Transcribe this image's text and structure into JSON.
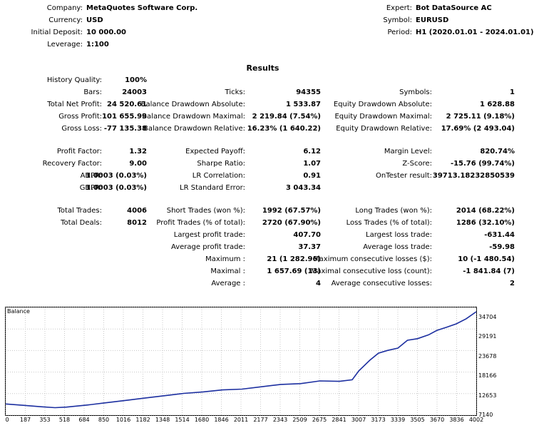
{
  "header": {
    "left": [
      {
        "label": "Company:",
        "value": "MetaQuotes Software Corp."
      },
      {
        "label": "Currency:",
        "value": "USD"
      },
      {
        "label": "Initial Deposit:",
        "value": "10 000.00"
      },
      {
        "label": "Leverage:",
        "value": "1:100"
      }
    ],
    "right": [
      {
        "label": "Expert:",
        "value": "Bot DataSource AC"
      },
      {
        "label": "Symbol:",
        "value": "EURUSD"
      },
      {
        "label": "Period:",
        "value": "H1 (2020.01.01 - 2024.01.01)"
      }
    ]
  },
  "results_title": "Results",
  "rows": [
    [
      {
        "label": "History Quality:",
        "value": "100%"
      },
      null,
      null
    ],
    [
      {
        "label": "Bars:",
        "value": "24003"
      },
      {
        "label": "Ticks:",
        "value": "94355"
      },
      {
        "label": "Symbols:",
        "value": "1"
      }
    ],
    [
      {
        "label": "Total Net Profit:",
        "value": "24 520.61"
      },
      {
        "label": "Balance Drawdown Absolute:",
        "value": "1 533.87"
      },
      {
        "label": "Equity Drawdown Absolute:",
        "value": "1 628.88"
      }
    ],
    [
      {
        "label": "Gross Profit:",
        "value": "101 655.99"
      },
      {
        "label": "Balance Drawdown Maximal:",
        "value": "2 219.84 (7.54%)"
      },
      {
        "label": "Equity Drawdown Maximal:",
        "value": "2 725.11 (9.18%)"
      }
    ],
    [
      {
        "label": "Gross Loss:",
        "value": "-77 135.38"
      },
      {
        "label": "Balance Drawdown Relative:",
        "value": "16.23% (1 640.22)"
      },
      {
        "label": "Equity Drawdown Relative:",
        "value": "17.69% (2 493.04)"
      }
    ],
    [
      {
        "label": "Profit Factor:",
        "value": "1.32"
      },
      {
        "label": "Expected Payoff:",
        "value": "6.12"
      },
      {
        "label": "Margin Level:",
        "value": "820.74%"
      }
    ],
    [
      {
        "label": "Recovery Factor:",
        "value": "9.00"
      },
      {
        "label": "Sharpe Ratio:",
        "value": "1.07"
      },
      {
        "label": "Z-Score:",
        "value": "-15.76 (99.74%)"
      }
    ],
    [
      {
        "label": "AHPR:",
        "value": "1.0003 (0.03%)"
      },
      {
        "label": "LR Correlation:",
        "value": "0.91"
      },
      {
        "label": "OnTester result:",
        "value": "39713.18232850539"
      }
    ],
    [
      {
        "label": "GHPR:",
        "value": "1.0003 (0.03%)"
      },
      {
        "label": "LR Standard Error:",
        "value": "3 043.34"
      },
      null
    ],
    [
      {
        "label": "Total Trades:",
        "value": "4006"
      },
      {
        "label": "Short Trades (won %):",
        "value": "1992 (67.57%)"
      },
      {
        "label": "Long Trades (won %):",
        "value": "2014 (68.22%)"
      }
    ],
    [
      {
        "label": "Total Deals:",
        "value": "8012"
      },
      {
        "label": "Profit Trades (% of total):",
        "value": "2720 (67.90%)"
      },
      {
        "label": "Loss Trades (% of total):",
        "value": "1286 (32.10%)"
      }
    ],
    [
      null,
      {
        "label": "Largest profit trade:",
        "value": "407.70"
      },
      {
        "label": "Largest loss trade:",
        "value": "-631.44"
      }
    ],
    [
      null,
      {
        "label": "Average profit trade:",
        "value": "37.37"
      },
      {
        "label": "Average loss trade:",
        "value": "-59.98"
      }
    ],
    [
      null,
      {
        "label": "Maximum :",
        "value": "21 (1 282.96)"
      },
      {
        "label": "Maximum consecutive losses ($):",
        "value": "10 (-1 480.54)"
      }
    ],
    [
      null,
      {
        "label": "Maximal :",
        "value": "1 657.69 (13)"
      },
      {
        "label": "Maximal consecutive loss (count):",
        "value": "-1 841.84 (7)"
      }
    ],
    [
      null,
      {
        "label": "Average :",
        "value": "4"
      },
      {
        "label": "Average consecutive losses:",
        "value": "2"
      }
    ]
  ],
  "chart_data": {
    "type": "line",
    "title": "Balance",
    "x_ticks": [
      "0",
      "187",
      "353",
      "518",
      "684",
      "850",
      "1016",
      "1182",
      "1348",
      "1514",
      "1680",
      "1846",
      "2011",
      "2177",
      "2343",
      "2509",
      "2675",
      "2841",
      "3007",
      "3173",
      "3339",
      "3505",
      "3670",
      "3836",
      "4002"
    ],
    "y_ticks": [
      "34704",
      "29191",
      "23678",
      "18166",
      "12653",
      "7140"
    ],
    "xlim": [
      0,
      4006
    ],
    "ylim": [
      7140,
      34704
    ],
    "series": [
      {
        "color": "#1c2fa0",
        "x": [
          0,
          150,
          300,
          420,
          518,
          700,
          850,
          1016,
          1182,
          1348,
          1514,
          1680,
          1846,
          2011,
          2177,
          2343,
          2509,
          2675,
          2841,
          2950,
          3007,
          3100,
          3173,
          3250,
          3339,
          3420,
          3505,
          3600,
          3670,
          3760,
          3836,
          3920,
          4006
        ],
        "y": [
          10000,
          9650,
          9300,
          9050,
          9200,
          9750,
          10300,
          10900,
          11500,
          12100,
          12700,
          13100,
          13600,
          13800,
          14400,
          15000,
          15200,
          15900,
          15800,
          16200,
          18500,
          21200,
          23000,
          23700,
          24300,
          26300,
          26700,
          27700,
          28800,
          29700,
          30500,
          31800,
          33600
        ]
      }
    ]
  }
}
